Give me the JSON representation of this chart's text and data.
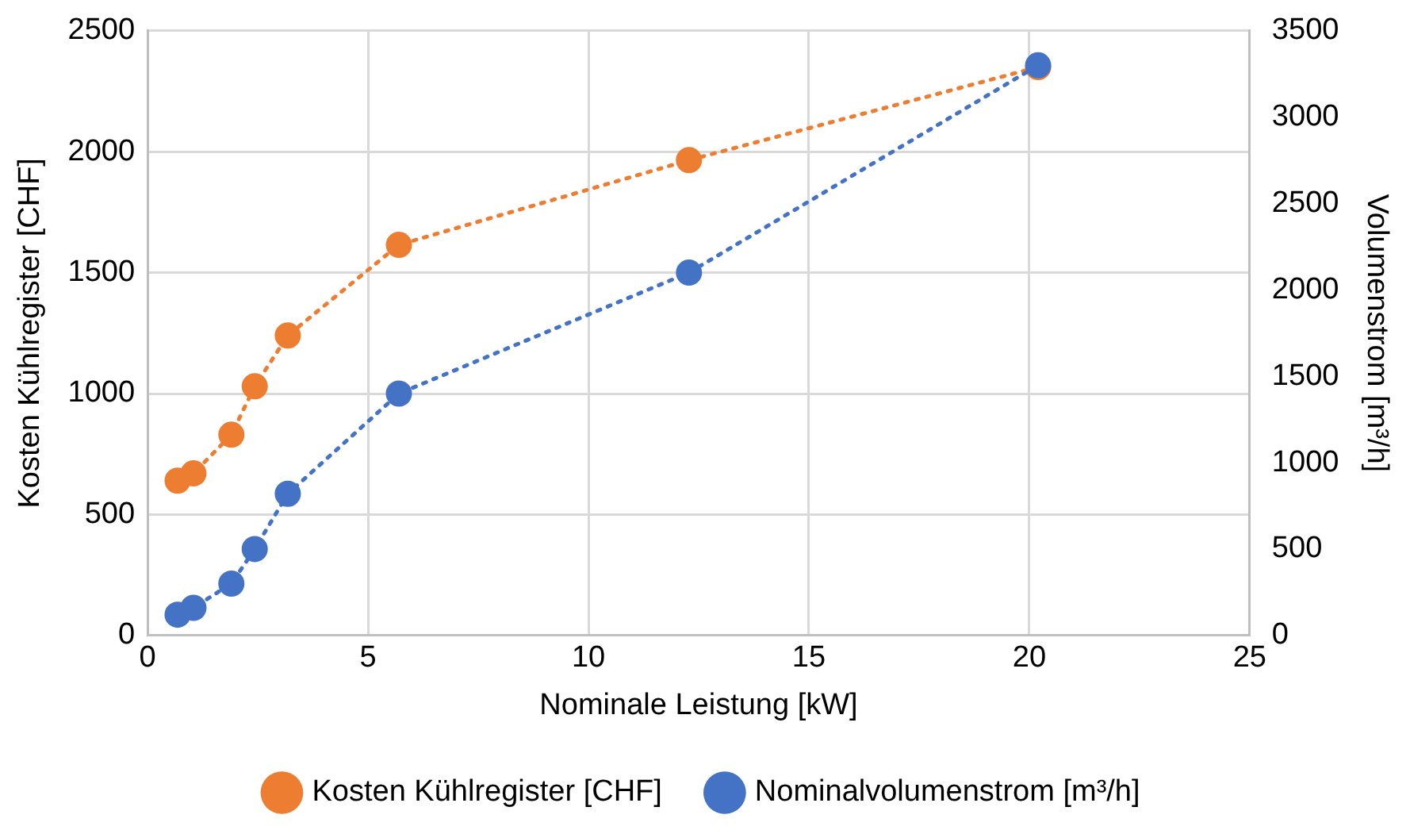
{
  "chart_data": {
    "type": "line",
    "xlabel": "Nominale Leistung [kW]",
    "ylabel": "Kosten Kühlregister [CHF]",
    "y2label": "Volumenstrom [m³/h]",
    "series": [
      {
        "name": "Kosten Kühlregister [CHF]",
        "color": "#ed7d31",
        "x": [
          0.68,
          1.04,
          1.9,
          2.43,
          3.18,
          5.7,
          12.28,
          20.2
        ],
        "values": [
          640,
          670,
          830,
          1030,
          1240,
          1615,
          1965,
          2350
        ]
      },
      {
        "name": "Nominalvolumenstrom [m³/h]",
        "color": "#4472c4",
        "axis": "y2",
        "x": [
          0.68,
          1.04,
          1.9,
          2.43,
          3.18,
          5.7,
          12.28,
          20.2
        ],
        "values": [
          120,
          160,
          300,
          500,
          820,
          1400,
          2100,
          3300
        ]
      }
    ],
    "xlim": [
      0,
      25
    ],
    "xticks": [
      0,
      5,
      10,
      15,
      20,
      25
    ],
    "ylim": [
      0,
      2500
    ],
    "yticks": [
      0,
      500,
      1000,
      1500,
      2000,
      2500
    ],
    "y2lim": [
      0,
      3500
    ],
    "y2ticks": [
      0,
      500,
      1000,
      1500,
      2000,
      2500,
      3000,
      3500
    ],
    "grid": true,
    "legend": "bottom",
    "marker": "circle",
    "line_style": "dotted"
  }
}
